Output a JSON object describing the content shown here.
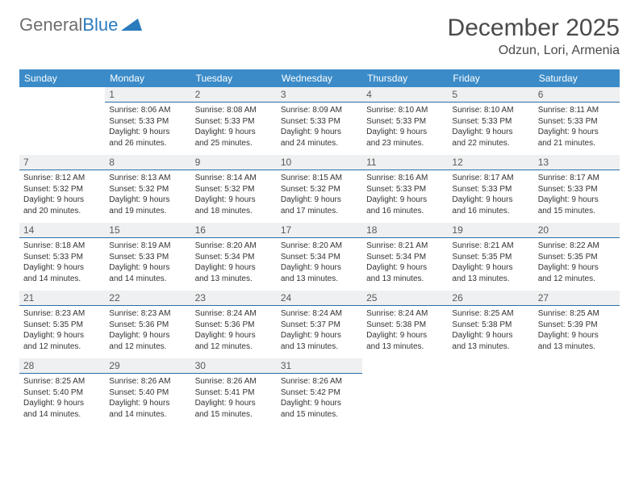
{
  "logo": {
    "text1": "General",
    "text2": "Blue"
  },
  "title": "December 2025",
  "location": "Odzun, Lori, Armenia",
  "colors": {
    "header_bg": "#3b8bc8",
    "daynum_bg": "#eef0f1",
    "daynum_border": "#2d6fa8",
    "logo_gray": "#6e6e6e",
    "logo_blue": "#2b7bbd"
  },
  "weekdays": [
    "Sunday",
    "Monday",
    "Tuesday",
    "Wednesday",
    "Thursday",
    "Friday",
    "Saturday"
  ],
  "weeks": [
    [
      null,
      {
        "n": "1",
        "sr": "Sunrise: 8:06 AM",
        "ss": "Sunset: 5:33 PM",
        "dl1": "Daylight: 9 hours",
        "dl2": "and 26 minutes."
      },
      {
        "n": "2",
        "sr": "Sunrise: 8:08 AM",
        "ss": "Sunset: 5:33 PM",
        "dl1": "Daylight: 9 hours",
        "dl2": "and 25 minutes."
      },
      {
        "n": "3",
        "sr": "Sunrise: 8:09 AM",
        "ss": "Sunset: 5:33 PM",
        "dl1": "Daylight: 9 hours",
        "dl2": "and 24 minutes."
      },
      {
        "n": "4",
        "sr": "Sunrise: 8:10 AM",
        "ss": "Sunset: 5:33 PM",
        "dl1": "Daylight: 9 hours",
        "dl2": "and 23 minutes."
      },
      {
        "n": "5",
        "sr": "Sunrise: 8:10 AM",
        "ss": "Sunset: 5:33 PM",
        "dl1": "Daylight: 9 hours",
        "dl2": "and 22 minutes."
      },
      {
        "n": "6",
        "sr": "Sunrise: 8:11 AM",
        "ss": "Sunset: 5:33 PM",
        "dl1": "Daylight: 9 hours",
        "dl2": "and 21 minutes."
      }
    ],
    [
      {
        "n": "7",
        "sr": "Sunrise: 8:12 AM",
        "ss": "Sunset: 5:32 PM",
        "dl1": "Daylight: 9 hours",
        "dl2": "and 20 minutes."
      },
      {
        "n": "8",
        "sr": "Sunrise: 8:13 AM",
        "ss": "Sunset: 5:32 PM",
        "dl1": "Daylight: 9 hours",
        "dl2": "and 19 minutes."
      },
      {
        "n": "9",
        "sr": "Sunrise: 8:14 AM",
        "ss": "Sunset: 5:32 PM",
        "dl1": "Daylight: 9 hours",
        "dl2": "and 18 minutes."
      },
      {
        "n": "10",
        "sr": "Sunrise: 8:15 AM",
        "ss": "Sunset: 5:32 PM",
        "dl1": "Daylight: 9 hours",
        "dl2": "and 17 minutes."
      },
      {
        "n": "11",
        "sr": "Sunrise: 8:16 AM",
        "ss": "Sunset: 5:33 PM",
        "dl1": "Daylight: 9 hours",
        "dl2": "and 16 minutes."
      },
      {
        "n": "12",
        "sr": "Sunrise: 8:17 AM",
        "ss": "Sunset: 5:33 PM",
        "dl1": "Daylight: 9 hours",
        "dl2": "and 16 minutes."
      },
      {
        "n": "13",
        "sr": "Sunrise: 8:17 AM",
        "ss": "Sunset: 5:33 PM",
        "dl1": "Daylight: 9 hours",
        "dl2": "and 15 minutes."
      }
    ],
    [
      {
        "n": "14",
        "sr": "Sunrise: 8:18 AM",
        "ss": "Sunset: 5:33 PM",
        "dl1": "Daylight: 9 hours",
        "dl2": "and 14 minutes."
      },
      {
        "n": "15",
        "sr": "Sunrise: 8:19 AM",
        "ss": "Sunset: 5:33 PM",
        "dl1": "Daylight: 9 hours",
        "dl2": "and 14 minutes."
      },
      {
        "n": "16",
        "sr": "Sunrise: 8:20 AM",
        "ss": "Sunset: 5:34 PM",
        "dl1": "Daylight: 9 hours",
        "dl2": "and 13 minutes."
      },
      {
        "n": "17",
        "sr": "Sunrise: 8:20 AM",
        "ss": "Sunset: 5:34 PM",
        "dl1": "Daylight: 9 hours",
        "dl2": "and 13 minutes."
      },
      {
        "n": "18",
        "sr": "Sunrise: 8:21 AM",
        "ss": "Sunset: 5:34 PM",
        "dl1": "Daylight: 9 hours",
        "dl2": "and 13 minutes."
      },
      {
        "n": "19",
        "sr": "Sunrise: 8:21 AM",
        "ss": "Sunset: 5:35 PM",
        "dl1": "Daylight: 9 hours",
        "dl2": "and 13 minutes."
      },
      {
        "n": "20",
        "sr": "Sunrise: 8:22 AM",
        "ss": "Sunset: 5:35 PM",
        "dl1": "Daylight: 9 hours",
        "dl2": "and 12 minutes."
      }
    ],
    [
      {
        "n": "21",
        "sr": "Sunrise: 8:23 AM",
        "ss": "Sunset: 5:35 PM",
        "dl1": "Daylight: 9 hours",
        "dl2": "and 12 minutes."
      },
      {
        "n": "22",
        "sr": "Sunrise: 8:23 AM",
        "ss": "Sunset: 5:36 PM",
        "dl1": "Daylight: 9 hours",
        "dl2": "and 12 minutes."
      },
      {
        "n": "23",
        "sr": "Sunrise: 8:24 AM",
        "ss": "Sunset: 5:36 PM",
        "dl1": "Daylight: 9 hours",
        "dl2": "and 12 minutes."
      },
      {
        "n": "24",
        "sr": "Sunrise: 8:24 AM",
        "ss": "Sunset: 5:37 PM",
        "dl1": "Daylight: 9 hours",
        "dl2": "and 13 minutes."
      },
      {
        "n": "25",
        "sr": "Sunrise: 8:24 AM",
        "ss": "Sunset: 5:38 PM",
        "dl1": "Daylight: 9 hours",
        "dl2": "and 13 minutes."
      },
      {
        "n": "26",
        "sr": "Sunrise: 8:25 AM",
        "ss": "Sunset: 5:38 PM",
        "dl1": "Daylight: 9 hours",
        "dl2": "and 13 minutes."
      },
      {
        "n": "27",
        "sr": "Sunrise: 8:25 AM",
        "ss": "Sunset: 5:39 PM",
        "dl1": "Daylight: 9 hours",
        "dl2": "and 13 minutes."
      }
    ],
    [
      {
        "n": "28",
        "sr": "Sunrise: 8:25 AM",
        "ss": "Sunset: 5:40 PM",
        "dl1": "Daylight: 9 hours",
        "dl2": "and 14 minutes."
      },
      {
        "n": "29",
        "sr": "Sunrise: 8:26 AM",
        "ss": "Sunset: 5:40 PM",
        "dl1": "Daylight: 9 hours",
        "dl2": "and 14 minutes."
      },
      {
        "n": "30",
        "sr": "Sunrise: 8:26 AM",
        "ss": "Sunset: 5:41 PM",
        "dl1": "Daylight: 9 hours",
        "dl2": "and 15 minutes."
      },
      {
        "n": "31",
        "sr": "Sunrise: 8:26 AM",
        "ss": "Sunset: 5:42 PM",
        "dl1": "Daylight: 9 hours",
        "dl2": "and 15 minutes."
      },
      null,
      null,
      null
    ]
  ]
}
